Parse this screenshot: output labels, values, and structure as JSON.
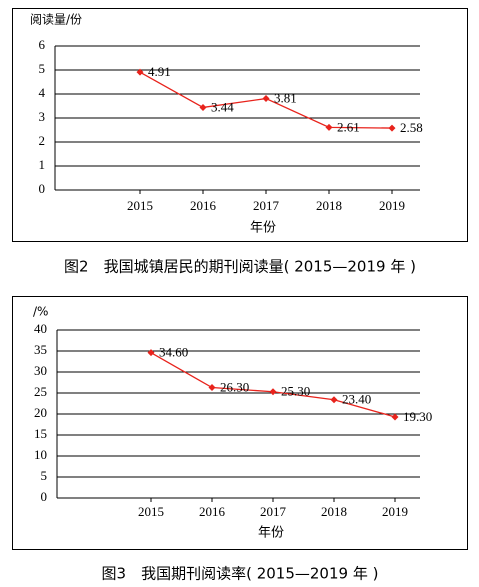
{
  "chart_data": [
    {
      "type": "line",
      "title": "图2　我国城镇居民的期刊阅读量( 2015—2019 年 )",
      "y_label": "阅读量/份",
      "x_label": "年份",
      "categories": [
        "2015",
        "2016",
        "2017",
        "2018",
        "2019"
      ],
      "values": [
        4.91,
        3.44,
        3.81,
        2.61,
        2.58
      ],
      "color": "#e8231c",
      "ylim": [
        0,
        6
      ],
      "yticks": [
        0,
        1,
        2,
        3,
        4,
        5,
        6
      ],
      "grid": true
    },
    {
      "type": "line",
      "title": "图3　我国期刊阅读率( 2015—2019 年 )",
      "y_label": "/%",
      "x_label": "年份",
      "categories": [
        "2015",
        "2016",
        "2017",
        "2018",
        "2019"
      ],
      "values": [
        34.6,
        26.3,
        25.3,
        23.4,
        19.3
      ],
      "value_labels": [
        "34.60",
        "26.30",
        "25.30",
        "23.40",
        "19.30"
      ],
      "color": "#e8231c",
      "ylim": [
        0,
        40
      ],
      "yticks": [
        0,
        5,
        10,
        15,
        20,
        25,
        30,
        35,
        40
      ],
      "grid": true
    }
  ]
}
